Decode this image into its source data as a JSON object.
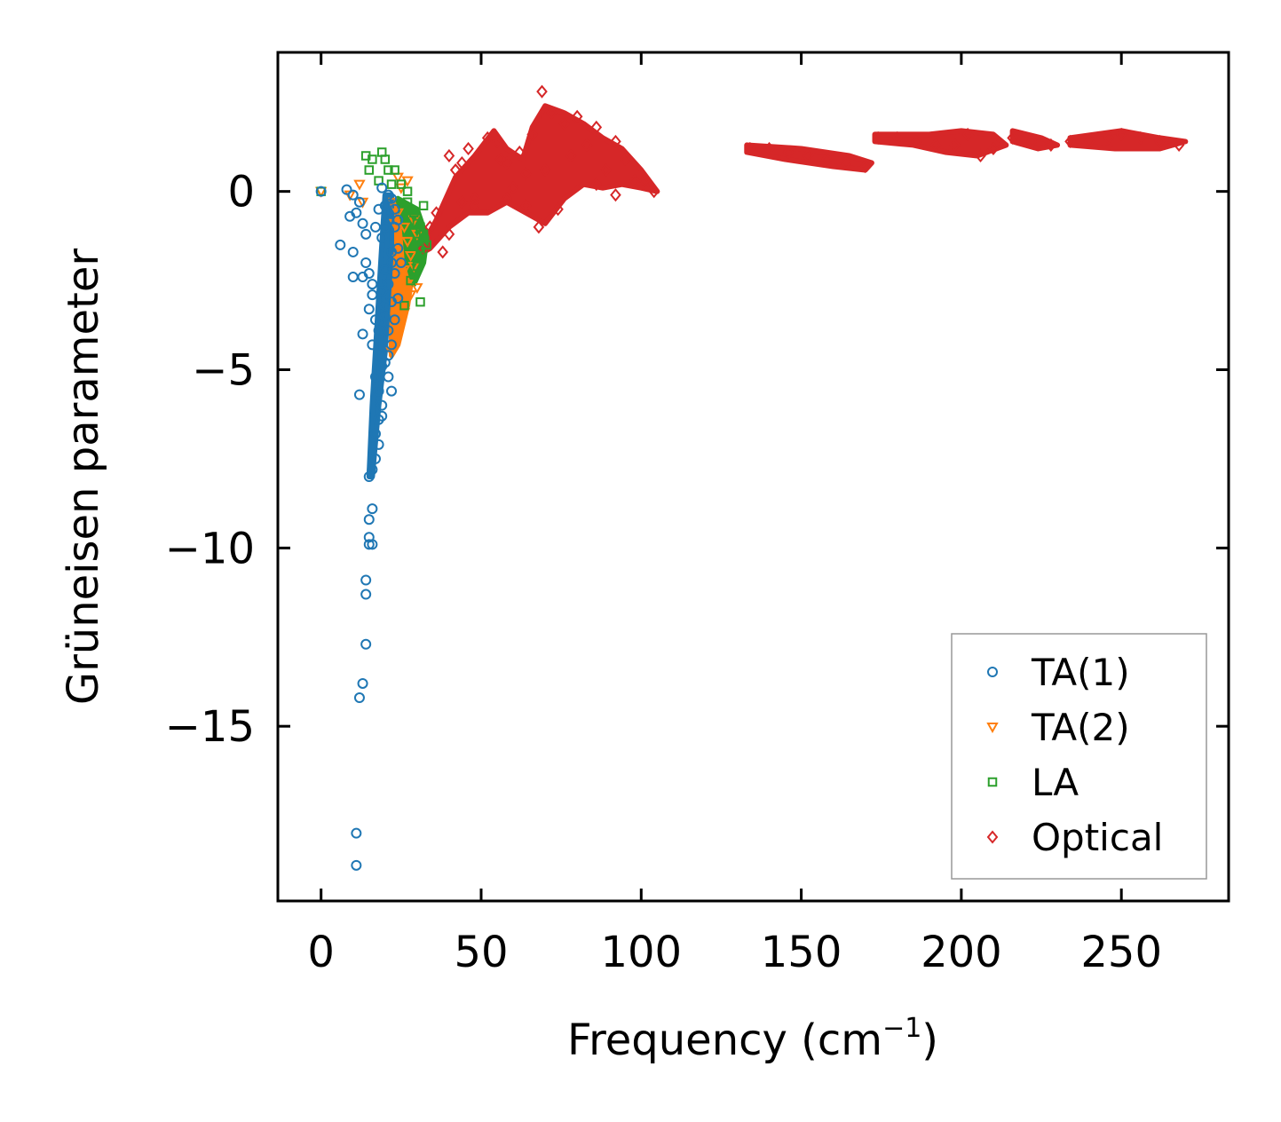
{
  "chart_data": {
    "type": "scatter",
    "title": "",
    "xlabel": "Frequency (cm",
    "xlabel_sup": "−1",
    "xlabel_close": ")",
    "ylabel": "Grüneisen parameter",
    "xlim": [
      -13.5,
      283.5
    ],
    "ylim": [
      -19.9,
      3.9
    ],
    "x_ticks": [
      0,
      50,
      100,
      150,
      200,
      250
    ],
    "x_tick_labels": [
      "0",
      "50",
      "100",
      "150",
      "200",
      "250"
    ],
    "y_ticks": [
      0,
      -5,
      -10,
      -15
    ],
    "y_tick_labels": [
      "0",
      "−5",
      "−10",
      "−15"
    ],
    "grid": false,
    "legend_position": "lower-right",
    "series": [
      {
        "name": "TA(1)",
        "marker": "circle",
        "color": "#1f77b4",
        "points": [
          [
            0,
            0
          ],
          [
            8,
            0.05
          ],
          [
            10,
            -0.1
          ],
          [
            12,
            -0.3
          ],
          [
            11,
            -0.6
          ],
          [
            9,
            -0.7
          ],
          [
            13,
            -0.9
          ],
          [
            14,
            -1.2
          ],
          [
            6,
            -1.5
          ],
          [
            10,
            -1.7
          ],
          [
            14,
            -2.0
          ],
          [
            10,
            -2.4
          ],
          [
            13,
            -2.4
          ],
          [
            15,
            -2.3
          ],
          [
            13,
            -4.0
          ],
          [
            12,
            -5.7
          ],
          [
            16,
            -2.9
          ],
          [
            15,
            -3.3
          ],
          [
            17,
            -3.6
          ],
          [
            16,
            -4.3
          ],
          [
            18,
            -4.6
          ],
          [
            17,
            -5.2
          ],
          [
            18,
            -5.6
          ],
          [
            19,
            -6.0
          ],
          [
            18,
            -6.4
          ],
          [
            17,
            -6.8
          ],
          [
            18,
            -7.1
          ],
          [
            17,
            -7.5
          ],
          [
            16,
            -7.8
          ],
          [
            15,
            -8.0
          ],
          [
            16,
            -8.9
          ],
          [
            15,
            -9.2
          ],
          [
            15,
            -9.7
          ],
          [
            15,
            -9.9
          ],
          [
            16,
            -9.9
          ],
          [
            14,
            -10.9
          ],
          [
            14,
            -11.3
          ],
          [
            14,
            -12.7
          ],
          [
            13,
            -13.8
          ],
          [
            12,
            -14.2
          ],
          [
            11,
            -18.0
          ],
          [
            11,
            -18.9
          ],
          [
            20,
            -0.4
          ],
          [
            21,
            -0.8
          ],
          [
            19,
            -1.3
          ],
          [
            22,
            -1.7
          ],
          [
            20,
            -2.2
          ],
          [
            21,
            -2.6
          ],
          [
            22,
            -3.1
          ],
          [
            20,
            -3.5
          ],
          [
            21,
            -3.9
          ],
          [
            22,
            -4.3
          ],
          [
            20,
            -4.8
          ],
          [
            21,
            -5.2
          ],
          [
            22,
            -5.6
          ],
          [
            19,
            -6.3
          ],
          [
            23,
            -1.0
          ],
          [
            24,
            -1.6
          ],
          [
            23,
            -2.3
          ],
          [
            22,
            -0.2
          ],
          [
            19,
            0.1
          ],
          [
            25,
            -2.0
          ],
          [
            24,
            -3.0
          ],
          [
            23,
            -3.6
          ],
          [
            21,
            -0.1
          ],
          [
            18,
            -0.5
          ],
          [
            17,
            -1.0
          ],
          [
            19,
            -2.8
          ],
          [
            20,
            -3.2
          ],
          [
            18,
            -3.9
          ],
          [
            21,
            -4.6
          ],
          [
            19,
            -4.9
          ],
          [
            22,
            -2.0
          ],
          [
            20,
            -1.0
          ],
          [
            23,
            -0.5
          ],
          [
            24,
            -0.8
          ],
          [
            16,
            -2.6
          ]
        ]
      },
      {
        "name": "TA(2)",
        "marker": "triangle-down",
        "color": "#ff7f0e",
        "points": [
          [
            0,
            0
          ],
          [
            9,
            -0.1
          ],
          [
            12,
            0.2
          ],
          [
            13,
            -0.3
          ],
          [
            22,
            -0.3
          ],
          [
            24,
            -0.6
          ],
          [
            26,
            -1.0
          ],
          [
            27,
            -1.4
          ],
          [
            28,
            -1.8
          ],
          [
            26,
            -2.2
          ],
          [
            27,
            -2.6
          ],
          [
            25,
            -3.0
          ],
          [
            26,
            -3.4
          ],
          [
            24,
            -3.8
          ],
          [
            23,
            -4.2
          ],
          [
            22,
            -4.5
          ],
          [
            29,
            -0.8
          ],
          [
            30,
            -1.2
          ],
          [
            29,
            -2.1
          ],
          [
            28,
            -2.9
          ],
          [
            25,
            0.1
          ],
          [
            23,
            -0.9
          ],
          [
            24,
            -1.9
          ],
          [
            25,
            -2.5
          ],
          [
            27,
            0.3
          ],
          [
            30,
            -2.7
          ],
          [
            24,
            0.4
          ]
        ]
      },
      {
        "name": "LA",
        "marker": "square",
        "color": "#2ca02c",
        "points": [
          [
            0,
            0
          ],
          [
            14,
            1.0
          ],
          [
            16,
            0.9
          ],
          [
            19,
            1.1
          ],
          [
            20,
            0.9
          ],
          [
            15,
            0.6
          ],
          [
            21,
            0.6
          ],
          [
            23,
            0.6
          ],
          [
            25,
            0.2
          ],
          [
            27,
            -0.3
          ],
          [
            29,
            -0.6
          ],
          [
            30,
            -0.9
          ],
          [
            32,
            -1.2
          ],
          [
            33,
            -1.5
          ],
          [
            31,
            -1.8
          ],
          [
            30,
            -2.1
          ],
          [
            31,
            -3.1
          ],
          [
            28,
            -2.5
          ],
          [
            26,
            -3.2
          ],
          [
            32,
            -0.4
          ],
          [
            31,
            -1.0
          ],
          [
            30,
            -1.4
          ],
          [
            18,
            0.3
          ],
          [
            22,
            0.2
          ],
          [
            27,
            0.0
          ]
        ]
      },
      {
        "name": "Optical",
        "marker": "diamond",
        "color": "#d62728",
        "points": [
          [
            32,
            -1.6
          ],
          [
            34,
            -1.0
          ],
          [
            36,
            -0.6
          ],
          [
            38,
            -1.7
          ],
          [
            40,
            1.0
          ],
          [
            42,
            0.6
          ],
          [
            44,
            0.8
          ],
          [
            46,
            1.2
          ],
          [
            48,
            -0.2
          ],
          [
            52,
            1.5
          ],
          [
            55,
            1.4
          ],
          [
            58,
            0.8
          ],
          [
            60,
            0.1
          ],
          [
            62,
            1.1
          ],
          [
            64,
            -0.4
          ],
          [
            66,
            1.6
          ],
          [
            68,
            -1.0
          ],
          [
            69,
            2.8
          ],
          [
            72,
            2.2
          ],
          [
            74,
            -0.5
          ],
          [
            76,
            1.9
          ],
          [
            80,
            2.1
          ],
          [
            83,
            1.3
          ],
          [
            86,
            1.8
          ],
          [
            89,
            0.6
          ],
          [
            92,
            1.4
          ],
          [
            95,
            0.9
          ],
          [
            98,
            0.3
          ],
          [
            101,
            0.3
          ],
          [
            104,
            0.0
          ],
          [
            70,
            0.6
          ],
          [
            78,
            1.0
          ],
          [
            86,
            0.2
          ],
          [
            92,
            -0.1
          ],
          [
            48,
            -0.4
          ],
          [
            40,
            -1.2
          ],
          [
            44,
            -0.3
          ],
          [
            56,
            0.9
          ],
          [
            64,
            0.5
          ],
          [
            58,
            -0.2
          ],
          [
            134,
            1.2
          ],
          [
            140,
            1.2
          ],
          [
            146,
            1.1
          ],
          [
            152,
            1.0
          ],
          [
            158,
            0.9
          ],
          [
            164,
            0.8
          ],
          [
            170,
            0.7
          ],
          [
            174,
            1.5
          ],
          [
            180,
            1.5
          ],
          [
            186,
            1.4
          ],
          [
            192,
            1.3
          ],
          [
            198,
            1.3
          ],
          [
            202,
            1.6
          ],
          [
            206,
            1.0
          ],
          [
            210,
            1.2
          ],
          [
            216,
            1.5
          ],
          [
            222,
            1.4
          ],
          [
            228,
            1.3
          ],
          [
            234,
            1.4
          ],
          [
            240,
            1.4
          ],
          [
            246,
            1.5
          ],
          [
            250,
            1.6
          ],
          [
            256,
            1.5
          ],
          [
            262,
            1.4
          ],
          [
            268,
            1.3
          ]
        ]
      }
    ],
    "dense_regions": [
      {
        "series": "TA(1)",
        "band": [
          [
            16,
            -8.0
          ],
          [
            18,
            -6.0
          ],
          [
            20,
            -4.5
          ],
          [
            21,
            -3.0
          ],
          [
            22,
            -1.5
          ],
          [
            22,
            -0.1
          ],
          [
            20,
            -0.1
          ],
          [
            19,
            -1.5
          ],
          [
            18,
            -3.0
          ],
          [
            17,
            -4.5
          ],
          [
            16,
            -6.0
          ],
          [
            15,
            -8.0
          ]
        ]
      },
      {
        "series": "TA(2)",
        "band": [
          [
            20,
            -0.2
          ],
          [
            24,
            -0.3
          ],
          [
            28,
            -1.0
          ],
          [
            29,
            -2.0
          ],
          [
            27,
            -3.2
          ],
          [
            24,
            -4.3
          ],
          [
            22,
            -4.6
          ],
          [
            22,
            -3.0
          ],
          [
            21,
            -1.5
          ]
        ]
      },
      {
        "series": "LA",
        "band": [
          [
            24,
            -0.2
          ],
          [
            30,
            -0.5
          ],
          [
            33,
            -1.3
          ],
          [
            32,
            -2.0
          ],
          [
            29,
            -2.6
          ],
          [
            27,
            -2.0
          ],
          [
            26,
            -1.0
          ]
        ]
      },
      {
        "series": "Optical",
        "band": [
          [
            30,
            -1.8
          ],
          [
            36,
            -0.8
          ],
          [
            42,
            0.4
          ],
          [
            48,
            1.0
          ],
          [
            54,
            1.7
          ],
          [
            58,
            1.2
          ],
          [
            63,
            0.9
          ],
          [
            66,
            1.8
          ],
          [
            70,
            2.4
          ],
          [
            76,
            2.2
          ],
          [
            82,
            1.9
          ],
          [
            88,
            1.5
          ],
          [
            94,
            1.2
          ],
          [
            100,
            0.6
          ],
          [
            105,
            0.0
          ],
          [
            100,
            0.1
          ],
          [
            94,
            0.2
          ],
          [
            88,
            0.1
          ],
          [
            82,
            0.2
          ],
          [
            76,
            -0.2
          ],
          [
            70,
            -0.9
          ],
          [
            64,
            -0.6
          ],
          [
            58,
            -0.3
          ],
          [
            52,
            -0.6
          ],
          [
            46,
            -0.6
          ],
          [
            40,
            -1.0
          ],
          [
            34,
            -1.6
          ]
        ]
      },
      {
        "series": "Optical",
        "band": [
          [
            133,
            1.3
          ],
          [
            150,
            1.2
          ],
          [
            165,
            1.0
          ],
          [
            172,
            0.8
          ],
          [
            170,
            0.6
          ],
          [
            160,
            0.7
          ],
          [
            145,
            0.9
          ],
          [
            133,
            1.1
          ]
        ]
      },
      {
        "series": "Optical",
        "band": [
          [
            173,
            1.6
          ],
          [
            190,
            1.6
          ],
          [
            200,
            1.7
          ],
          [
            210,
            1.6
          ],
          [
            214,
            1.3
          ],
          [
            205,
            1.0
          ],
          [
            195,
            1.1
          ],
          [
            185,
            1.3
          ],
          [
            173,
            1.4
          ]
        ]
      },
      {
        "series": "Optical",
        "band": [
          [
            216,
            1.7
          ],
          [
            225,
            1.5
          ],
          [
            230,
            1.3
          ],
          [
            224,
            1.2
          ],
          [
            216,
            1.4
          ]
        ]
      },
      {
        "series": "Optical",
        "band": [
          [
            234,
            1.5
          ],
          [
            250,
            1.7
          ],
          [
            262,
            1.5
          ],
          [
            270,
            1.4
          ],
          [
            262,
            1.2
          ],
          [
            248,
            1.2
          ],
          [
            234,
            1.3
          ]
        ]
      }
    ]
  }
}
